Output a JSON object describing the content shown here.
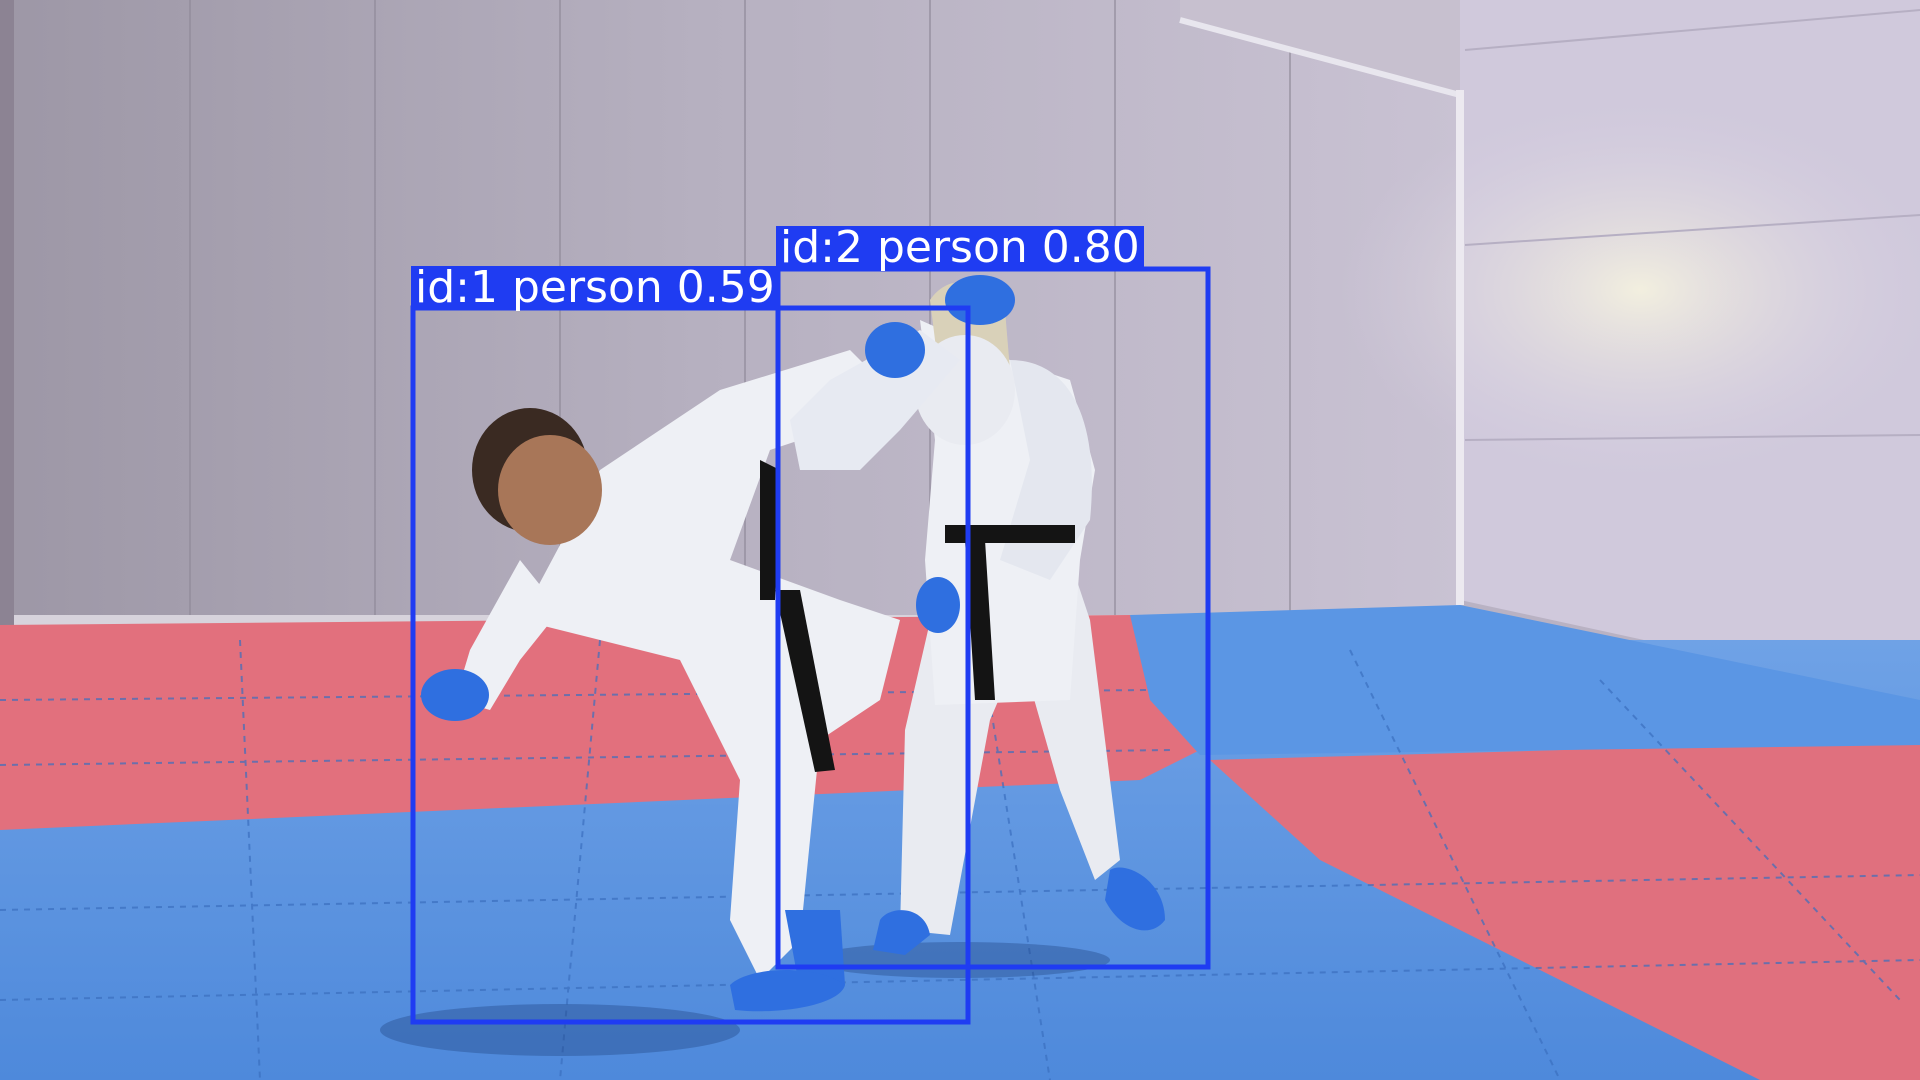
{
  "colors": {
    "wall": "#b3aebd",
    "wall_right": "#d4cde0",
    "mat_red": "#e0707d",
    "mat_blue": "#5d97e5",
    "gi_white": "#eef0f5",
    "glove_blue": "#2f6fe0",
    "belt_black": "#141414",
    "bbox": "#1f3cf2"
  },
  "detections": [
    {
      "track_id": 1,
      "class": "person",
      "confidence": 0.59,
      "label": "id:1 person 0.59"
    },
    {
      "track_id": 2,
      "class": "person",
      "confidence": 0.8,
      "label": "id:2 person 0.80"
    }
  ]
}
